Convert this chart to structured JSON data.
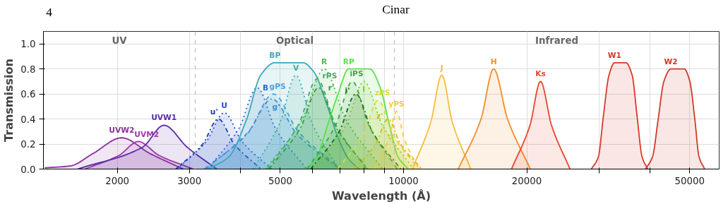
{
  "chart_data": {
    "type": "area",
    "xlabel": "Wavelength (Å)",
    "ylabel": "Transmission",
    "log": "x",
    "grid": true,
    "xlim": [
      1320,
      59000
    ],
    "ylim": [
      0,
      1.1
    ],
    "xticks": [
      2000,
      3000,
      {
        "value": 4000,
        "label": null
      },
      5000,
      {
        "value": 6000,
        "label": null
      },
      {
        "value": 7000,
        "label": null
      },
      {
        "value": 8000,
        "label": null
      },
      {
        "value": 9000,
        "label": null
      },
      10000,
      20000,
      {
        "value": 30000,
        "label": null
      },
      {
        "value": 40000,
        "label": null
      },
      50000
    ],
    "yticks": [
      {
        "value": 0,
        "label": "0.0"
      },
      0.2,
      0.4,
      0.6,
      0.8,
      {
        "value": 1,
        "label": "1.0"
      }
    ],
    "ref_lines": [
      {
        "axis": "x",
        "value": 3100,
        "color": "#c8c8c8",
        "line_style": "dashed"
      },
      {
        "axis": "x",
        "value": 9500,
        "color": "#c8c8c8",
        "line_style": "dashed"
      }
    ],
    "annotations": [
      "4",
      "Cinar",
      "UV",
      "Optical",
      "Infrared"
    ],
    "series": [
      {
        "name": "UVW2",
        "color": "#8a2f9a",
        "line_style": "solid",
        "x": [
          1330,
          1535,
          1746,
          2050,
          2400,
          2900
        ],
        "values": [
          0.01,
          0.025,
          0.125,
          0.25,
          0.125,
          0
        ]
      },
      {
        "name": "UVM2",
        "color": "#9c3aa6",
        "line_style": "solid",
        "x": [
          1667,
          2021,
          2250,
          2526,
          3062
        ],
        "values": [
          0,
          0.11,
          0.22,
          0.11,
          0
        ]
      },
      {
        "name": "UVW1",
        "color": "#5a2aa8",
        "line_style": "solid",
        "x": [
          1600,
          2305,
          2600,
          2962,
          3500
        ],
        "values": [
          0,
          0.175,
          0.35,
          0.175,
          0
        ]
      },
      {
        "name": "u'",
        "color": "#1a3aa8",
        "line_style": "dashdot",
        "x": [
          2780,
          3233,
          3530,
          3858,
          4487
        ],
        "values": [
          0,
          0.2,
          0.4,
          0.2,
          0
        ]
      },
      {
        "name": "U",
        "color": "#1f4fd6",
        "line_style": "dotted",
        "x": [
          2795,
          3307,
          3650,
          4022,
          4757
        ],
        "values": [
          0,
          0.225,
          0.45,
          0.225,
          0
        ]
      },
      {
        "name": "B",
        "color": "#2b66d8",
        "line_style": "dotted",
        "x": [
          3324,
          3963,
          4390,
          4865,
          5801
        ],
        "values": [
          0,
          0.325,
          0.65,
          0.325,
          0
        ]
      },
      {
        "name": "gPS",
        "color": "#4aa3e0",
        "line_style": "dashed",
        "x": [
          3289,
          4182,
          4810,
          5532,
          7031
        ],
        "values": [
          0,
          0.3,
          0.6,
          0.3,
          0
        ]
      },
      {
        "name": "g'",
        "color": "#3b8fd4",
        "line_style": "dashdot",
        "x": [
          3264,
          4150,
          4770,
          5489,
          6978
        ],
        "values": [
          0,
          0.28,
          0.56,
          0.28,
          0
        ]
      },
      {
        "name": "BP",
        "color": "#3aaab8",
        "line_style": "solid",
        "x": [
          3330,
          3750,
          4140,
          4479,
          4850,
          5679,
          6028,
          6522,
          6920,
          7345,
          7795
        ],
        "values": [
          0,
          0.1,
          0.4,
          0.75,
          0.85,
          0.85,
          0.78,
          0.5,
          0.25,
          0.08,
          0
        ]
      },
      {
        "name": "V",
        "color": "#35b0a0",
        "line_style": "dotted",
        "x": [
          4297,
          4997,
          5460,
          5964,
          6937
        ],
        "values": [
          0,
          0.375,
          0.75,
          0.375,
          0
        ]
      },
      {
        "name": "rPS",
        "color": "#3fae6a",
        "line_style": "dashed",
        "x": [
          4653,
          5549,
          6150,
          6812,
          8124
        ],
        "values": [
          0,
          0.36,
          0.72,
          0.36,
          0
        ]
      },
      {
        "name": "r'",
        "color": "#2e9a3e",
        "line_style": "dashdot",
        "x": [
          4690,
          5593,
          6200,
          6866,
          8188
        ],
        "values": [
          0,
          0.325,
          0.65,
          0.325,
          0
        ]
      },
      {
        "name": "R",
        "color": "#4cb84c",
        "line_style": "dotted",
        "x": [
          4601,
          5665,
          6400,
          7220,
          8889
        ],
        "values": [
          0,
          0.4,
          0.8,
          0.4,
          0
        ]
      },
      {
        "name": "RP",
        "color": "#5be04a",
        "line_style": "solid",
        "x": [
          5795,
          6149,
          6522,
          6920,
          7345,
          8269,
          8776,
          9240,
          9690,
          10280
        ],
        "values": [
          0,
          0.1,
          0.35,
          0.6,
          0.8,
          0.8,
          0.65,
          0.35,
          0.1,
          0
        ]
      },
      {
        "name": "iPS",
        "color": "#3ca84a",
        "line_style": "dashed",
        "x": [
          5817,
          6826,
          7500,
          8225,
          9652
        ],
        "values": [
          0,
          0.35,
          0.7,
          0.35,
          0
        ]
      },
      {
        "name": "i'",
        "color": "#1c6a10",
        "line_style": "dashdot",
        "x": [
          5933,
          6963,
          7650,
          8389,
          9845
        ],
        "values": [
          0,
          0.3,
          0.6,
          0.3,
          0
        ]
      },
      {
        "name": "I",
        "color": "#7cc832",
        "line_style": "dotted",
        "x": [
          6066,
          7234,
          8000,
          8879,
          10590
        ],
        "values": [
          0,
          0.35,
          0.7,
          0.35,
          0
        ]
      },
      {
        "name": "zPS",
        "color": "#d8df3c",
        "line_style": "dashed",
        "x": [
          6905,
          7974,
          8670,
          9430,
          10890
        ],
        "values": [
          0,
          0.275,
          0.55,
          0.275,
          0
        ]
      },
      {
        "name": "z'",
        "color": "#cdbb1a",
        "line_style": "dashdot",
        "x": [
          7581,
          8548,
          9170,
          9829,
          11085
        ],
        "values": [
          0,
          0.2,
          0.4,
          0.2,
          0
        ]
      },
      {
        "name": "yPS",
        "color": "#f5c842",
        "line_style": "dashed",
        "x": [
          8468,
          9175,
          9610,
          10070,
          10910
        ],
        "values": [
          0,
          0.23,
          0.46,
          0.23,
          0
        ]
      },
      {
        "name": "J",
        "color": "#f7bd3a",
        "line_style": "solid",
        "x": [
          10505,
          11655,
          12400,
          13155,
          14595
        ],
        "values": [
          0,
          0.375,
          0.75,
          0.375,
          0
        ]
      },
      {
        "name": "H",
        "color": "#f28c28",
        "line_style": "solid",
        "x": [
          13605,
          15460,
          16600,
          17950,
          20400
        ],
        "values": [
          0,
          0.4,
          0.8,
          0.4,
          0
        ]
      },
      {
        "name": "Ks",
        "color": "#e8452c",
        "line_style": "solid",
        "x": [
          18355,
          20360,
          21600,
          22985,
          25500
        ],
        "values": [
          0,
          0.35,
          0.7,
          0.35,
          0
        ]
      },
      {
        "name": "W1",
        "color": "#d63a26",
        "line_style": "solid",
        "x": [
          28760,
          29920,
          30760,
          31750,
          32770,
          34910,
          36170,
          37190,
          38230,
          39470
        ],
        "values": [
          0,
          0.1,
          0.42,
          0.75,
          0.85,
          0.85,
          0.75,
          0.42,
          0.1,
          0
        ]
      },
      {
        "name": "W2",
        "color": "#cf3a28",
        "line_style": "solid",
        "x": [
          39000,
          40570,
          41880,
          43230,
          44980,
          48480,
          50030,
          51440,
          52670,
          54370
        ],
        "values": [
          0,
          0.1,
          0.4,
          0.7,
          0.8,
          0.8,
          0.7,
          0.4,
          0.1,
          0
        ]
      }
    ]
  }
}
